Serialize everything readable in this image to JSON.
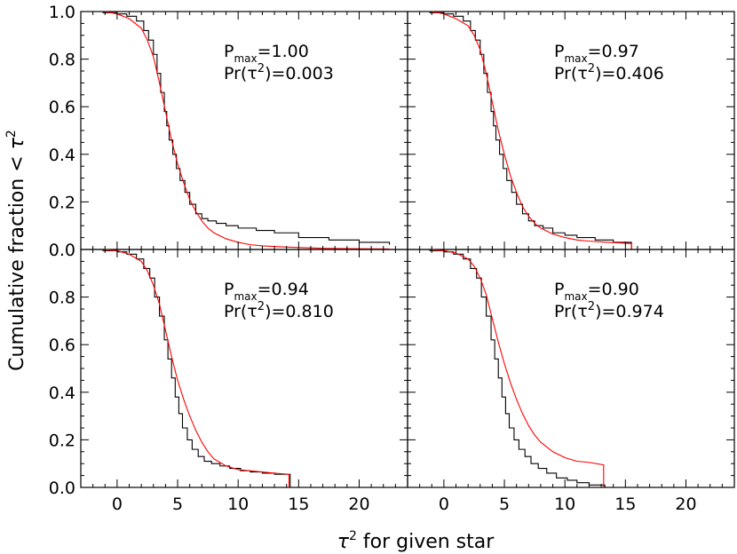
{
  "figure": {
    "xlabel_symbol": "τ",
    "xlabel_sup": "2",
    "xlabel_suffix": " for given star",
    "ylabel_prefix": "Cumulative fraction < ",
    "ylabel_symbol": "τ",
    "ylabel_sup": "2"
  },
  "chart_data": [
    {
      "type": "line",
      "annotation": {
        "p_prefix": "P",
        "p_sub": "max",
        "p_value": "=1.00",
        "pr_prefix": "Pr(τ",
        "pr_sup": "2",
        "pr_value": ")=0.003"
      },
      "xlim": [
        -3,
        24
      ],
      "ylim": [
        0,
        1
      ],
      "xticks": [
        0,
        5,
        10,
        15,
        20
      ],
      "yticks": [
        0,
        0.2,
        0.4,
        0.6,
        0.8,
        1.0
      ],
      "series": [
        {
          "style": "step",
          "color": "#000000",
          "x": [
            -1.2,
            0.0,
            0.8,
            1.6,
            2.2,
            2.6,
            3.0,
            3.3,
            3.6,
            3.9,
            4.1,
            4.3,
            4.6,
            4.9,
            5.2,
            5.6,
            6.0,
            6.5,
            7.0,
            7.5,
            8.2,
            9.0,
            10.0,
            11.5,
            13.0,
            15.0,
            17.5,
            20.0,
            22.5
          ],
          "y": [
            0.995,
            0.99,
            0.98,
            0.96,
            0.92,
            0.88,
            0.82,
            0.74,
            0.66,
            0.58,
            0.52,
            0.46,
            0.4,
            0.34,
            0.29,
            0.24,
            0.19,
            0.15,
            0.13,
            0.12,
            0.11,
            0.1,
            0.09,
            0.08,
            0.07,
            0.05,
            0.04,
            0.03,
            0.02
          ]
        },
        {
          "style": "smooth",
          "color": "#ff0000",
          "x": [
            -1.0,
            0.0,
            1.0,
            2.0,
            2.5,
            3.0,
            3.5,
            4.0,
            4.5,
            5.0,
            5.5,
            6.0,
            6.5,
            7.0,
            7.5,
            8.0,
            9.0,
            10.0,
            11.0,
            12.0,
            14.0,
            17.0,
            20.0,
            22.5
          ],
          "y": [
            1.0,
            0.99,
            0.97,
            0.93,
            0.88,
            0.81,
            0.7,
            0.58,
            0.46,
            0.36,
            0.28,
            0.21,
            0.16,
            0.12,
            0.09,
            0.07,
            0.045,
            0.03,
            0.02,
            0.015,
            0.01,
            0.005,
            0.003,
            0.002
          ]
        }
      ]
    },
    {
      "type": "line",
      "annotation": {
        "p_prefix": "P",
        "p_sub": "max",
        "p_value": "=0.97",
        "pr_prefix": "Pr(τ",
        "pr_sup": "2",
        "pr_value": ")=0.406"
      },
      "xlim": [
        -3,
        24
      ],
      "ylim": [
        0,
        1
      ],
      "xticks": [
        0,
        5,
        10,
        15,
        20
      ],
      "yticks": [
        0,
        0.2,
        0.4,
        0.6,
        0.8,
        1.0
      ],
      "series": [
        {
          "style": "step",
          "color": "#000000",
          "x": [
            -1.2,
            0.0,
            0.8,
            1.6,
            2.2,
            2.6,
            3.0,
            3.3,
            3.6,
            3.9,
            4.1,
            4.3,
            4.6,
            4.9,
            5.2,
            5.6,
            6.0,
            6.5,
            7.0,
            7.5,
            8.2,
            9.0,
            10.0,
            11.0,
            12.5,
            14.0,
            15.5
          ],
          "y": [
            0.995,
            0.99,
            0.98,
            0.96,
            0.92,
            0.88,
            0.82,
            0.74,
            0.66,
            0.58,
            0.52,
            0.46,
            0.4,
            0.34,
            0.29,
            0.24,
            0.19,
            0.15,
            0.12,
            0.1,
            0.09,
            0.07,
            0.06,
            0.05,
            0.04,
            0.03,
            0.0
          ]
        },
        {
          "style": "smooth",
          "color": "#ff0000",
          "x": [
            -1.0,
            0.0,
            1.0,
            2.0,
            2.5,
            3.0,
            3.5,
            4.0,
            4.5,
            5.0,
            5.5,
            6.0,
            6.5,
            7.0,
            7.5,
            8.0,
            9.0,
            10.0,
            11.0,
            12.0,
            13.5,
            15.5,
            15.5
          ],
          "y": [
            1.0,
            0.99,
            0.97,
            0.94,
            0.9,
            0.84,
            0.74,
            0.62,
            0.5,
            0.4,
            0.31,
            0.24,
            0.18,
            0.14,
            0.11,
            0.09,
            0.065,
            0.05,
            0.04,
            0.035,
            0.03,
            0.025,
            0.0
          ]
        }
      ]
    },
    {
      "type": "line",
      "annotation": {
        "p_prefix": "P",
        "p_sub": "max",
        "p_value": "=0.94",
        "pr_prefix": "Pr(τ",
        "pr_sup": "2",
        "pr_value": ")=0.810"
      },
      "xlim": [
        -3,
        24
      ],
      "ylim": [
        0,
        1
      ],
      "xticks": [
        0,
        5,
        10,
        15,
        20
      ],
      "yticks": [
        0,
        0.2,
        0.4,
        0.6,
        0.8,
        1.0
      ],
      "series": [
        {
          "style": "step",
          "color": "#000000",
          "x": [
            -1.2,
            0.0,
            0.8,
            1.6,
            2.2,
            2.7,
            3.1,
            3.5,
            3.9,
            4.2,
            4.5,
            4.8,
            5.1,
            5.4,
            5.8,
            6.2,
            6.7,
            7.2,
            7.8,
            8.5,
            9.3,
            10.2,
            11.0,
            12.0,
            13.0,
            14.3
          ],
          "y": [
            0.995,
            0.99,
            0.98,
            0.96,
            0.92,
            0.88,
            0.8,
            0.72,
            0.62,
            0.54,
            0.46,
            0.38,
            0.31,
            0.25,
            0.2,
            0.16,
            0.13,
            0.11,
            0.1,
            0.09,
            0.08,
            0.07,
            0.065,
            0.06,
            0.055,
            0.0
          ]
        },
        {
          "style": "smooth",
          "color": "#ff0000",
          "x": [
            -1.0,
            0.0,
            1.0,
            2.0,
            2.5,
            3.0,
            3.5,
            4.0,
            4.5,
            5.0,
            5.5,
            6.0,
            6.5,
            7.0,
            7.5,
            8.0,
            9.0,
            10.0,
            11.0,
            12.0,
            13.0,
            14.2,
            14.2
          ],
          "y": [
            1.0,
            0.995,
            0.98,
            0.95,
            0.91,
            0.85,
            0.77,
            0.66,
            0.55,
            0.45,
            0.37,
            0.3,
            0.24,
            0.19,
            0.15,
            0.12,
            0.09,
            0.075,
            0.07,
            0.065,
            0.06,
            0.055,
            0.0
          ]
        }
      ]
    },
    {
      "type": "line",
      "annotation": {
        "p_prefix": "P",
        "p_sub": "max",
        "p_value": "=0.90",
        "pr_prefix": "Pr(τ",
        "pr_sup": "2",
        "pr_value": ")=0.974"
      },
      "xlim": [
        -3,
        24
      ],
      "ylim": [
        0,
        1
      ],
      "xticks": [
        0,
        5,
        10,
        15,
        20
      ],
      "yticks": [
        0,
        0.2,
        0.4,
        0.6,
        0.8,
        1.0
      ],
      "series": [
        {
          "style": "step",
          "color": "#000000",
          "x": [
            -1.2,
            0.0,
            0.8,
            1.6,
            2.2,
            2.7,
            3.1,
            3.5,
            3.9,
            4.2,
            4.5,
            4.8,
            5.1,
            5.4,
            5.8,
            6.2,
            6.7,
            7.2,
            7.8,
            8.5,
            9.3,
            10.2,
            11.0,
            12.0,
            13.3
          ],
          "y": [
            0.995,
            0.99,
            0.98,
            0.96,
            0.92,
            0.88,
            0.8,
            0.72,
            0.62,
            0.54,
            0.46,
            0.38,
            0.31,
            0.25,
            0.2,
            0.16,
            0.13,
            0.1,
            0.08,
            0.06,
            0.04,
            0.03,
            0.02,
            0.01,
            0.0
          ]
        },
        {
          "style": "smooth",
          "color": "#ff0000",
          "x": [
            -1.0,
            0.0,
            1.0,
            2.0,
            2.5,
            3.0,
            3.5,
            4.0,
            4.5,
            5.0,
            5.5,
            6.0,
            6.5,
            7.0,
            7.5,
            8.0,
            9.0,
            10.0,
            11.0,
            12.0,
            13.2,
            13.2
          ],
          "y": [
            1.0,
            0.995,
            0.985,
            0.96,
            0.93,
            0.88,
            0.81,
            0.71,
            0.61,
            0.52,
            0.44,
            0.37,
            0.31,
            0.26,
            0.22,
            0.19,
            0.15,
            0.125,
            0.11,
            0.105,
            0.095,
            0.0
          ]
        }
      ]
    }
  ]
}
